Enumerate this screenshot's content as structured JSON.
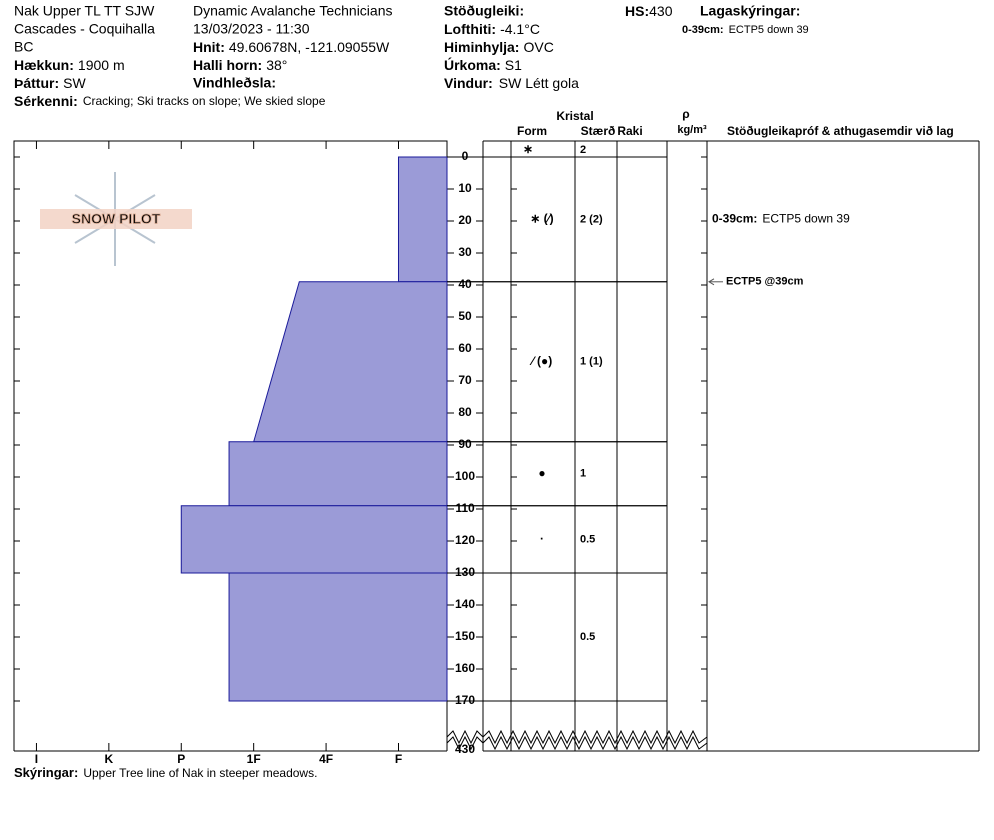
{
  "header": {
    "location": [
      "Nak Upper TL  TT SJW",
      "Cascades - Coquihalla",
      "BC"
    ],
    "elevation_label": "Hækkun:",
    "elevation": "1900 m",
    "aspect_label": "Þáttur:",
    "aspect": "SW",
    "operator": "Dynamic Avalanche Technicians",
    "datetime": "13/03/2023 - 11:30",
    "coords_label": "Hnit:",
    "coords": "49.60678N, -121.09055W",
    "slope_label": "Halli horn:",
    "slope": "38°",
    "wind_loading_label": "Vindhleðsla:",
    "stability_label": "Stöðugleiki:",
    "air_temp_label": "Lofthiti:",
    "air_temp": "-4.1°C",
    "sky_label": "Himinhylja:",
    "sky": "OVC",
    "precip_label": "Úrkoma:",
    "precip": "S1",
    "wind_label": "Vindur:",
    "wind": "SW Létt gola",
    "hs_label": "HS:",
    "hs": "430",
    "legend_title": "Lagaskýringar:",
    "legend_note_label": "0-39cm:",
    "legend_note": "ECTP5 down 39",
    "features_label": "Sérkenni:",
    "features": "Cracking;  Ski tracks on slope; We skied slope",
    "watermark": "SNOW PILOT"
  },
  "chart_data": {
    "type": "snowprofile",
    "color": "#9b9bd7",
    "xlim": [
      6.31,
      0.33
    ],
    "xticks": [
      {
        "value": 6,
        "label": "I"
      },
      {
        "value": 5,
        "label": "K"
      },
      {
        "value": 4,
        "label": "P"
      },
      {
        "value": 3,
        "label": "1F"
      },
      {
        "value": 2,
        "label": "4F"
      },
      {
        "value": 1,
        "label": "F"
      }
    ],
    "ylim": [
      0,
      170
    ],
    "yticks": [
      0,
      10,
      20,
      30,
      40,
      50,
      60,
      70,
      80,
      90,
      100,
      110,
      120,
      130,
      140,
      150,
      160,
      170
    ],
    "bottom_depth": 430,
    "columns": {
      "crystal": "Kristal",
      "form": "Form",
      "size": "Stærð",
      "moisture": "Raki",
      "density": "ρ",
      "density_unit": "kg/m³",
      "comments": "Stöðugleikapróf & athugasemdir við lag"
    },
    "surface_form": "∗",
    "surface_size": "2",
    "layers": {
      "top": [
        0,
        39,
        89,
        109,
        130
      ],
      "bottom": [
        39,
        89,
        109,
        130,
        170
      ],
      "hardness_top": [
        1,
        2.37,
        3.34,
        4,
        3.34
      ],
      "hardness_bottom": [
        1,
        3,
        3.34,
        4,
        3.34
      ],
      "form": [
        "∗ (⁄)",
        "⁄ (●)",
        "●",
        "·",
        null
      ],
      "size": [
        "2 (2)",
        "1 (1)",
        "1",
        "0.5",
        "0.5"
      ],
      "comment_label": [
        "0-39cm:",
        null,
        null,
        null,
        null
      ],
      "comment": [
        "ECTP5 down 39",
        null,
        null,
        null,
        null
      ]
    },
    "tests": [
      {
        "depth": 39,
        "label": "ECTP5 @39cm"
      }
    ]
  },
  "footer": {
    "label": "Skýringar:",
    "text": "Upper Tree line of Nak in steeper meadows."
  }
}
